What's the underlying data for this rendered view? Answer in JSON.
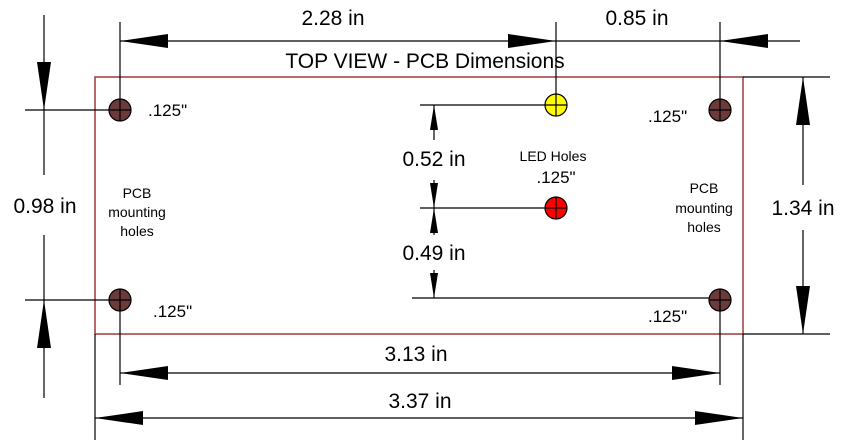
{
  "title": "TOP VIEW - PCB Dimensions",
  "dimensions": {
    "top_left": "2.28 in",
    "top_right": "0.85 in",
    "left_height": "0.98 in",
    "right_height": "1.34 in",
    "led_upper_gap": "0.52 in",
    "led_lower_gap": "0.49 in",
    "inner_width": "3.13 in",
    "outer_width": "3.37 in"
  },
  "hole_labels": {
    "top_left": ".125\"",
    "top_right": ".125\"",
    "bottom_left": ".125\"",
    "bottom_right": ".125\""
  },
  "led": {
    "label": "LED Holes",
    "size": ".125\"",
    "top_color": "#ffff00",
    "bottom_color": "#ff0000"
  },
  "mounting": {
    "left_lines": [
      "PCB",
      "mounting",
      "holes"
    ],
    "right_lines": [
      "PCB",
      "mounting",
      "holes"
    ],
    "hole_color": "#6b3a3a"
  },
  "colors": {
    "board_outline": "#9a3a3a"
  }
}
